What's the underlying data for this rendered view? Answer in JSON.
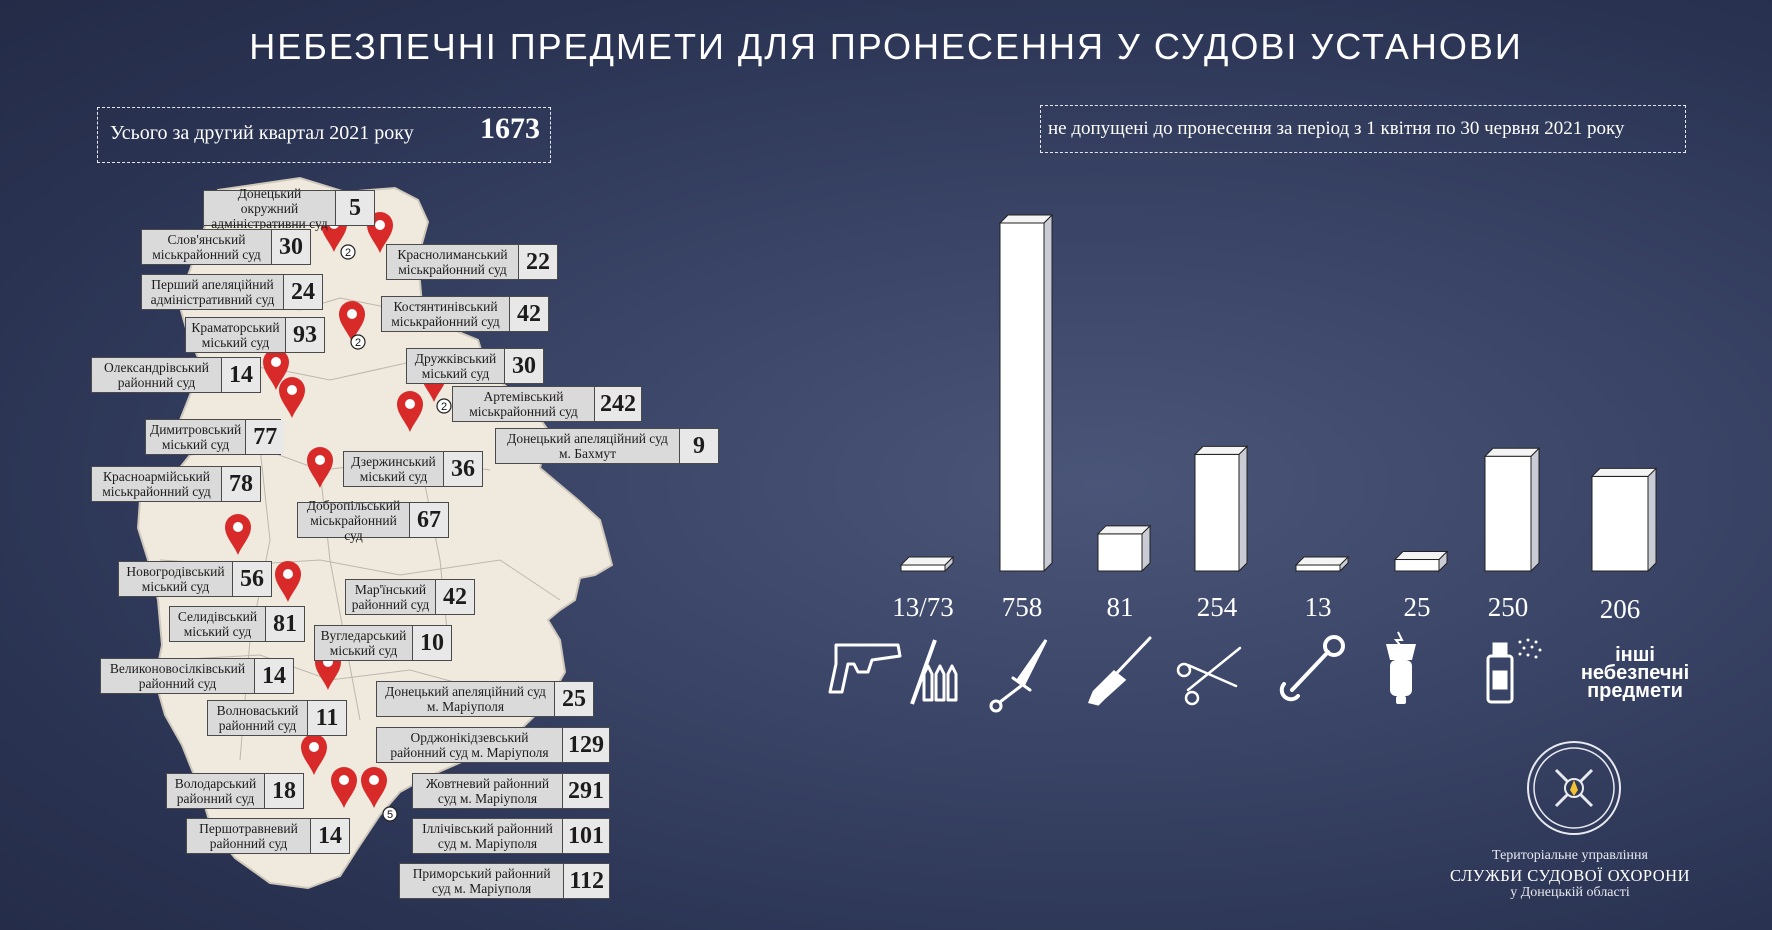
{
  "title": "НЕБЕЗПЕЧНІ ПРЕДМЕТИ ДЛЯ ПРОНЕСЕННЯ У СУДОВІ УСТАНОВИ",
  "total": {
    "label": "Усього за другий квартал 2021 року",
    "value": "1673"
  },
  "period": "не допущені до пронесення за період з 1 квітня по 30 червня 2021 року",
  "courts": [
    {
      "name": "Донецький окружний адміністративни суд",
      "value": "5"
    },
    {
      "name": "Слов'янський міськрайонний суд",
      "value": "30"
    },
    {
      "name": "Краснолиманський міськрайонний суд",
      "value": "22"
    },
    {
      "name": "Перший апеляційний адміністративний суд",
      "value": "24"
    },
    {
      "name": "Костянтинівський міськрайонний суд",
      "value": "42"
    },
    {
      "name": "Краматорський міський суд",
      "value": "93"
    },
    {
      "name": "Дружківський міський суд",
      "value": "30"
    },
    {
      "name": "Олександрівський районний суд",
      "value": "14"
    },
    {
      "name": "Артемівський міськрайонний суд",
      "value": "242"
    },
    {
      "name": "Димитровський міський суд",
      "value": "77"
    },
    {
      "name": "Донецький апеляційний суд м. Бахмут",
      "value": "9"
    },
    {
      "name": "Дзержинський міський суд",
      "value": "36"
    },
    {
      "name": "Красноармійський міськрайонний суд",
      "value": "78"
    },
    {
      "name": "Добропільський міськрайонний суд",
      "value": "67"
    },
    {
      "name": "Новогродівський міський суд",
      "value": "56"
    },
    {
      "name": "Мар'їнський районний суд",
      "value": "42"
    },
    {
      "name": "Селидівський міський суд",
      "value": "81"
    },
    {
      "name": "Вугледарський міський суд",
      "value": "10"
    },
    {
      "name": "Великоновосілківський районний суд",
      "value": "14"
    },
    {
      "name": "Донецький апеляційний суд м. Маріуполя",
      "value": "25"
    },
    {
      "name": "Волноваський районний суд",
      "value": "11"
    },
    {
      "name": "Орджонікідзевський районний суд м. Маріуполя",
      "value": "129"
    },
    {
      "name": "Володарський районний суд",
      "value": "18"
    },
    {
      "name": "Жовтневий районний суд м. Маріуполя",
      "value": "291"
    },
    {
      "name": "Першотравневий районний суд",
      "value": "14"
    },
    {
      "name": "Іллічівський районний суд м. Маріуполя",
      "value": "101"
    },
    {
      "name": "Приморський районний суд м. Маріуполя",
      "value": "112"
    }
  ],
  "map_marker_counts": [
    "2",
    "2",
    "2",
    "5"
  ],
  "chart_data": {
    "type": "bar",
    "categories": [
      "firearms-ammunition",
      "knife",
      "screwdriver",
      "scissors",
      "wrench",
      "stun-gun",
      "spray",
      "other"
    ],
    "values": [
      13,
      758,
      81,
      254,
      13,
      25,
      250,
      206
    ],
    "value_labels": [
      "13/73",
      "758",
      "81",
      "254",
      "13",
      "25",
      "250",
      "206"
    ],
    "other_label": "інші небезпечні предмети",
    "ylim": [
      0,
      800
    ]
  },
  "icons": [
    "pistol-bullets-icon",
    "knife-icon",
    "screwdriver-icon",
    "scissors-icon",
    "wrench-icon",
    "stun-gun-icon",
    "spray-can-icon"
  ],
  "organization": {
    "line1": "Територіальне управління",
    "line2": "СЛУЖБИ СУДОВОЇ ОХОРОНИ",
    "line3": "у Донецькій області"
  },
  "colors": {
    "background": "#2f3958",
    "bar": "#ffffff",
    "marker": "#d92a2a",
    "map": "#efe9de",
    "label_bg": "#dadada"
  }
}
